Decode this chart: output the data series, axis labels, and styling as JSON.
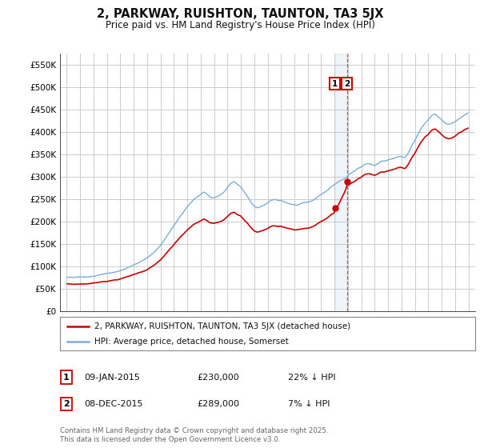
{
  "title": "2, PARKWAY, RUISHTON, TAUNTON, TA3 5JX",
  "subtitle": "Price paid vs. HM Land Registry's House Price Index (HPI)",
  "ylabel_ticks": [
    "£0",
    "£50K",
    "£100K",
    "£150K",
    "£200K",
    "£250K",
    "£300K",
    "£350K",
    "£400K",
    "£450K",
    "£500K",
    "£550K"
  ],
  "ylim": [
    0,
    575000
  ],
  "yticks": [
    0,
    50000,
    100000,
    150000,
    200000,
    250000,
    300000,
    350000,
    400000,
    450000,
    500000,
    550000
  ],
  "background_color": "#ffffff",
  "plot_bg_color": "#ffffff",
  "grid_color": "#cccccc",
  "hpi_color": "#7aaddc",
  "price_color": "#cc0000",
  "sale1_date": "09-JAN-2015",
  "sale1_price": 230000,
  "sale1_hpi_pct": "22% ↓ HPI",
  "sale2_date": "08-DEC-2015",
  "sale2_price": 289000,
  "sale2_hpi_pct": "7% ↓ HPI",
  "legend_label1": "2, PARKWAY, RUISHTON, TAUNTON, TA3 5JX (detached house)",
  "legend_label2": "HPI: Average price, detached house, Somerset",
  "footer": "Contains HM Land Registry data © Crown copyright and database right 2025.\nThis data is licensed under the Open Government Licence v3.0.",
  "sale1_x": 2015.03,
  "sale2_x": 2015.92,
  "vline_x": 2015.92,
  "xlim_left": 1994.5,
  "xlim_right": 2025.5
}
